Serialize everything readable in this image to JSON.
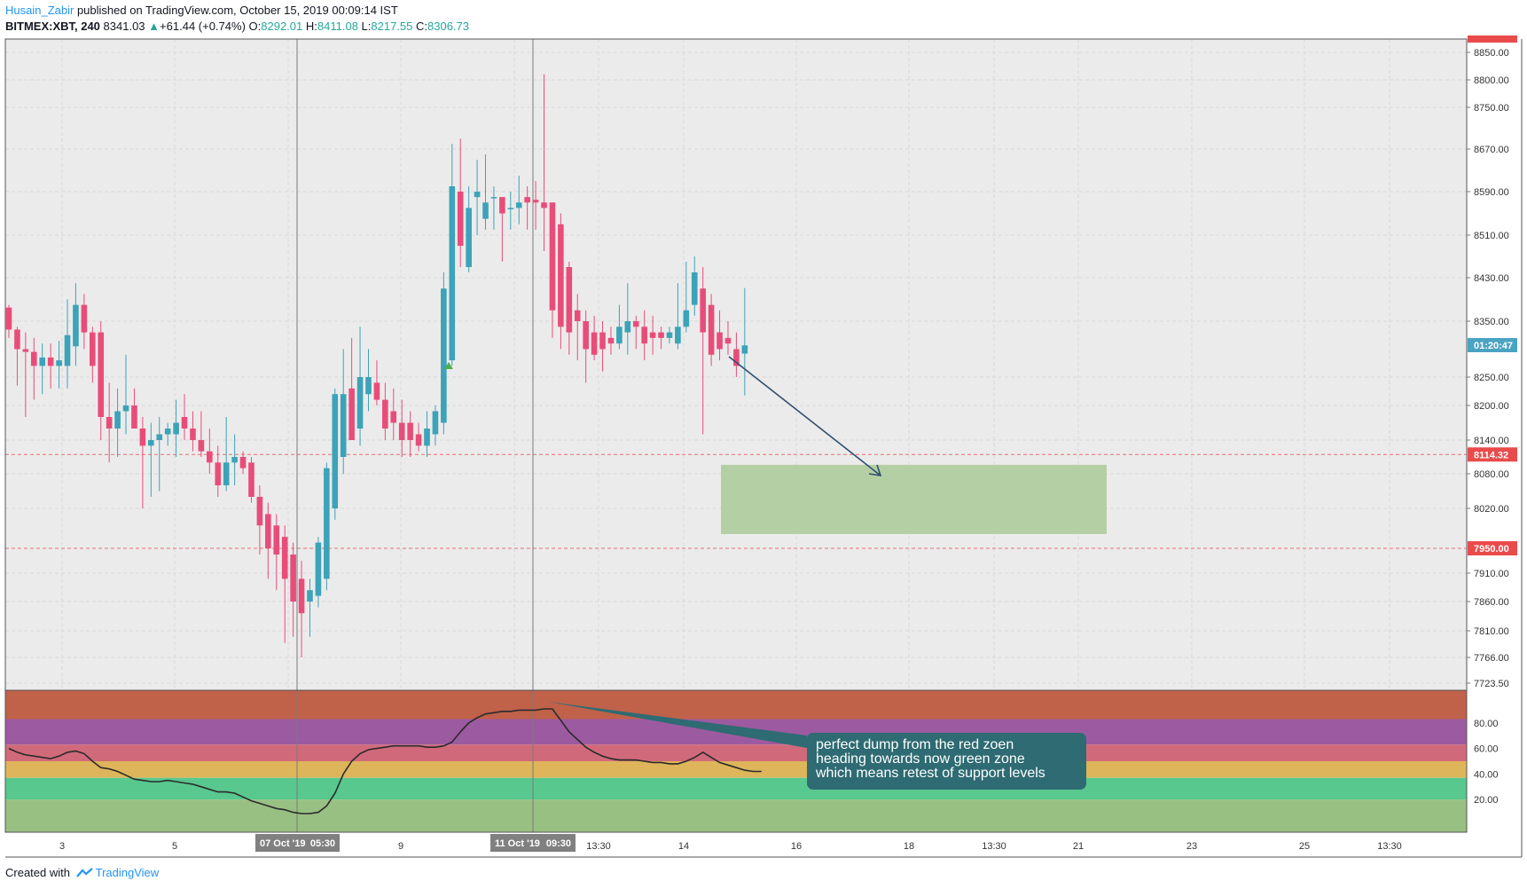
{
  "header": {
    "author": "Husain_Zabir",
    "published_text": "published on TradingView.com, October 15, 2019 00:09:14 IST",
    "symbol_line": {
      "symbol": "BITMEX:XBT, 240",
      "last": "8341.03",
      "arrow": "▲",
      "change": "+61.44 (+0.74%)",
      "o_label": "O:",
      "o_value": "8292.01",
      "h_label": "H:",
      "h_value": "8411.08",
      "l_label": "L:",
      "l_value": "8217.55",
      "c_label": "C:",
      "c_value": "8306.73"
    }
  },
  "footer": {
    "created_with": "Created with",
    "brand": "TradingView"
  },
  "annotation": {
    "lines": [
      "perfect dump from the red zoen",
      "heading towards now green zone",
      "which means retest of support levels"
    ]
  },
  "colors": {
    "up": "#26a69a",
    "up_body": "#3ca3b8",
    "down": "#e84d7a",
    "bg": "#ecebeb",
    "grid": "#d9d9d9",
    "zone_box": "#b5cfa5",
    "price_tag_red": "#e94b4b",
    "price_tag_blue": "#4aa3c3",
    "arrow": "#2e4f6e"
  },
  "chart_data": [
    {
      "type": "candlestick",
      "title": "BITMEX:XBT, 240",
      "ylim": [
        7723.5,
        8880
      ],
      "y_ticks": [
        "8850.00",
        "8800.00",
        "8750.00",
        "8670.00",
        "8590.00",
        "8510.00",
        "8430.00",
        "8350.00",
        "8250.00",
        "8200.00",
        "8140.00",
        "8080.00",
        "8020.00",
        "7910.00",
        "7860.00",
        "7810.00",
        "7766.00",
        "7723.50"
      ],
      "x_ticks": [
        "3",
        "5",
        "07 Oct '19",
        "05:30",
        "9",
        "11 Oct '19",
        "09:30",
        "13:30",
        "14",
        "16",
        "18",
        "13:30",
        "21",
        "23",
        "25",
        "13:30"
      ],
      "price_tags": [
        "8114.32",
        "01:20:47",
        "7950.00"
      ],
      "horizontal_lines": [
        8114.32,
        7950.0
      ],
      "zone": {
        "from_date": "Oct 14",
        "to_date": "Oct 21",
        "top": 8096,
        "bottom": 7975
      },
      "candles": [
        {
          "o": 8375,
          "h": 8380,
          "l": 8320,
          "c": 8335
        },
        {
          "o": 8335,
          "h": 8340,
          "l": 8235,
          "c": 8300
        },
        {
          "o": 8300,
          "h": 8330,
          "l": 8180,
          "c": 8295
        },
        {
          "o": 8295,
          "h": 8320,
          "l": 8210,
          "c": 8270
        },
        {
          "o": 8270,
          "h": 8310,
          "l": 8220,
          "c": 8285
        },
        {
          "o": 8285,
          "h": 8310,
          "l": 8230,
          "c": 8270
        },
        {
          "o": 8270,
          "h": 8315,
          "l": 8230,
          "c": 8280
        },
        {
          "o": 8270,
          "h": 8390,
          "l": 8230,
          "c": 8325
        },
        {
          "o": 8305,
          "h": 8420,
          "l": 8270,
          "c": 8380
        },
        {
          "o": 8380,
          "h": 8400,
          "l": 8300,
          "c": 8330
        },
        {
          "o": 8330,
          "h": 8340,
          "l": 8240,
          "c": 8270
        },
        {
          "o": 8330,
          "h": 8350,
          "l": 8140,
          "c": 8180
        },
        {
          "o": 8180,
          "h": 8240,
          "l": 8100,
          "c": 8160
        },
        {
          "o": 8160,
          "h": 8230,
          "l": 8110,
          "c": 8190
        },
        {
          "o": 8190,
          "h": 8290,
          "l": 8150,
          "c": 8200
        },
        {
          "o": 8200,
          "h": 8230,
          "l": 8160,
          "c": 8160
        },
        {
          "o": 8160,
          "h": 8180,
          "l": 8020,
          "c": 8130
        },
        {
          "o": 8130,
          "h": 8170,
          "l": 8040,
          "c": 8140
        },
        {
          "o": 8140,
          "h": 8180,
          "l": 8050,
          "c": 8150
        },
        {
          "o": 8150,
          "h": 8170,
          "l": 8130,
          "c": 8160
        },
        {
          "o": 8150,
          "h": 8210,
          "l": 8110,
          "c": 8170
        },
        {
          "o": 8180,
          "h": 8220,
          "l": 8140,
          "c": 8160
        },
        {
          "o": 8160,
          "h": 8190,
          "l": 8120,
          "c": 8140
        },
        {
          "o": 8140,
          "h": 8190,
          "l": 8110,
          "c": 8120
        },
        {
          "o": 8120,
          "h": 8160,
          "l": 8080,
          "c": 8100
        },
        {
          "o": 8100,
          "h": 8130,
          "l": 8040,
          "c": 8060
        },
        {
          "o": 8060,
          "h": 8180,
          "l": 8050,
          "c": 8100
        },
        {
          "o": 8100,
          "h": 8150,
          "l": 8060,
          "c": 8110
        },
        {
          "o": 8110,
          "h": 8120,
          "l": 8080,
          "c": 8090
        },
        {
          "o": 8100,
          "h": 8110,
          "l": 8030,
          "c": 8040
        },
        {
          "o": 8040,
          "h": 8060,
          "l": 7940,
          "c": 7990
        },
        {
          "o": 8010,
          "h": 8030,
          "l": 7900,
          "c": 7950
        },
        {
          "o": 7990,
          "h": 8010,
          "l": 7880,
          "c": 7940
        },
        {
          "o": 7970,
          "h": 7990,
          "l": 7790,
          "c": 7900
        },
        {
          "o": 7940,
          "h": 7960,
          "l": 7800,
          "c": 7860
        },
        {
          "o": 7900,
          "h": 7930,
          "l": 7766,
          "c": 7840
        },
        {
          "o": 7860,
          "h": 7900,
          "l": 7800,
          "c": 7880
        },
        {
          "o": 7870,
          "h": 7970,
          "l": 7850,
          "c": 7960
        },
        {
          "o": 7900,
          "h": 8100,
          "l": 7880,
          "c": 8090
        },
        {
          "o": 8020,
          "h": 8230,
          "l": 8000,
          "c": 8220
        },
        {
          "o": 8110,
          "h": 8300,
          "l": 8080,
          "c": 8220
        },
        {
          "o": 8230,
          "h": 8320,
          "l": 8140,
          "c": 8140
        },
        {
          "o": 8160,
          "h": 8340,
          "l": 8130,
          "c": 8250
        },
        {
          "o": 8220,
          "h": 8300,
          "l": 8190,
          "c": 8250
        },
        {
          "o": 8240,
          "h": 8280,
          "l": 8200,
          "c": 8210
        },
        {
          "o": 8210,
          "h": 8240,
          "l": 8140,
          "c": 8160
        },
        {
          "o": 8190,
          "h": 8230,
          "l": 8140,
          "c": 8170
        },
        {
          "o": 8170,
          "h": 8210,
          "l": 8110,
          "c": 8140
        },
        {
          "o": 8170,
          "h": 8190,
          "l": 8110,
          "c": 8140
        },
        {
          "o": 8150,
          "h": 8170,
          "l": 8120,
          "c": 8130
        },
        {
          "o": 8130,
          "h": 8190,
          "l": 8110,
          "c": 8160
        },
        {
          "o": 8150,
          "h": 8200,
          "l": 8130,
          "c": 8190
        },
        {
          "o": 8170,
          "h": 8440,
          "l": 8150,
          "c": 8410
        },
        {
          "o": 8280,
          "h": 8680,
          "l": 8270,
          "c": 8600
        },
        {
          "o": 8590,
          "h": 8690,
          "l": 8450,
          "c": 8490
        },
        {
          "o": 8450,
          "h": 8600,
          "l": 8440,
          "c": 8560
        },
        {
          "o": 8580,
          "h": 8650,
          "l": 8510,
          "c": 8590
        },
        {
          "o": 8540,
          "h": 8660,
          "l": 8520,
          "c": 8570
        },
        {
          "o": 8580,
          "h": 8600,
          "l": 8520,
          "c": 8580
        },
        {
          "o": 8580,
          "h": 8580,
          "l": 8460,
          "c": 8550
        },
        {
          "o": 8560,
          "h": 8590,
          "l": 8520,
          "c": 8560
        },
        {
          "o": 8560,
          "h": 8620,
          "l": 8530,
          "c": 8570
        },
        {
          "o": 8580,
          "h": 8600,
          "l": 8520,
          "c": 8570
        },
        {
          "o": 8575,
          "h": 8610,
          "l": 8520,
          "c": 8570
        },
        {
          "o": 8570,
          "h": 8810,
          "l": 8480,
          "c": 8560
        },
        {
          "o": 8570,
          "h": 8570,
          "l": 8320,
          "c": 8370
        },
        {
          "o": 8530,
          "h": 8550,
          "l": 8300,
          "c": 8340
        },
        {
          "o": 8450,
          "h": 8460,
          "l": 8290,
          "c": 8330
        },
        {
          "o": 8370,
          "h": 8400,
          "l": 8280,
          "c": 8350
        },
        {
          "o": 8350,
          "h": 8370,
          "l": 8240,
          "c": 8300
        },
        {
          "o": 8330,
          "h": 8360,
          "l": 8280,
          "c": 8290
        },
        {
          "o": 8330,
          "h": 8350,
          "l": 8260,
          "c": 8300
        },
        {
          "o": 8320,
          "h": 8340,
          "l": 8290,
          "c": 8310
        },
        {
          "o": 8310,
          "h": 8380,
          "l": 8300,
          "c": 8340
        },
        {
          "o": 8330,
          "h": 8420,
          "l": 8290,
          "c": 8350
        },
        {
          "o": 8350,
          "h": 8360,
          "l": 8300,
          "c": 8340
        },
        {
          "o": 8340,
          "h": 8370,
          "l": 8280,
          "c": 8310
        },
        {
          "o": 8330,
          "h": 8360,
          "l": 8290,
          "c": 8320
        },
        {
          "o": 8330,
          "h": 8340,
          "l": 8300,
          "c": 8320
        },
        {
          "o": 8320,
          "h": 8340,
          "l": 8310,
          "c": 8330
        },
        {
          "o": 8310,
          "h": 8420,
          "l": 8300,
          "c": 8340
        },
        {
          "o": 8340,
          "h": 8460,
          "l": 8330,
          "c": 8370
        },
        {
          "o": 8380,
          "h": 8470,
          "l": 8360,
          "c": 8440
        },
        {
          "o": 8410,
          "h": 8450,
          "l": 8150,
          "c": 8330
        },
        {
          "o": 8380,
          "h": 8400,
          "l": 8270,
          "c": 8290
        },
        {
          "o": 8330,
          "h": 8370,
          "l": 8280,
          "c": 8300
        },
        {
          "o": 8320,
          "h": 8350,
          "l": 8290,
          "c": 8310
        },
        {
          "o": 8300,
          "h": 8330,
          "l": 8250,
          "c": 8270
        },
        {
          "o": 8292.01,
          "h": 8411.08,
          "l": 8217.55,
          "c": 8306.73
        }
      ]
    },
    {
      "type": "line",
      "title": "",
      "ylim": [
        0,
        100
      ],
      "y_ticks": [
        "80.00",
        "60.00",
        "40.00",
        "20.00"
      ],
      "bands": [
        {
          "from": 83,
          "to": 100,
          "color": "#c0614a"
        },
        {
          "from": 63,
          "to": 83,
          "color": "#9c5aa0"
        },
        {
          "from": 50,
          "to": 63,
          "color": "#d06a7a"
        },
        {
          "from": 37,
          "to": 50,
          "color": "#deb55a"
        },
        {
          "from": 20,
          "to": 37,
          "color": "#58c88e"
        },
        {
          "from": 0,
          "to": 20,
          "color": "#98c083"
        }
      ],
      "values": [
        60,
        57,
        55,
        54,
        53,
        52,
        54,
        57,
        58,
        56,
        50,
        45,
        44,
        42,
        39,
        36,
        35,
        34,
        34,
        35,
        34,
        33,
        32,
        30,
        28,
        26,
        26,
        25,
        22,
        19,
        17,
        15,
        13,
        12,
        10,
        9,
        9,
        10,
        15,
        25,
        40,
        50,
        56,
        59,
        60,
        61,
        62,
        62,
        62,
        62,
        61,
        61,
        62,
        65,
        73,
        80,
        84,
        87,
        88,
        89,
        89,
        90,
        90,
        90,
        91,
        91,
        82,
        73,
        67,
        61,
        57,
        54,
        52,
        51,
        51,
        51,
        50,
        49,
        49,
        48,
        48,
        50,
        53,
        57,
        53,
        49,
        47,
        45,
        43,
        42,
        42
      ]
    }
  ]
}
